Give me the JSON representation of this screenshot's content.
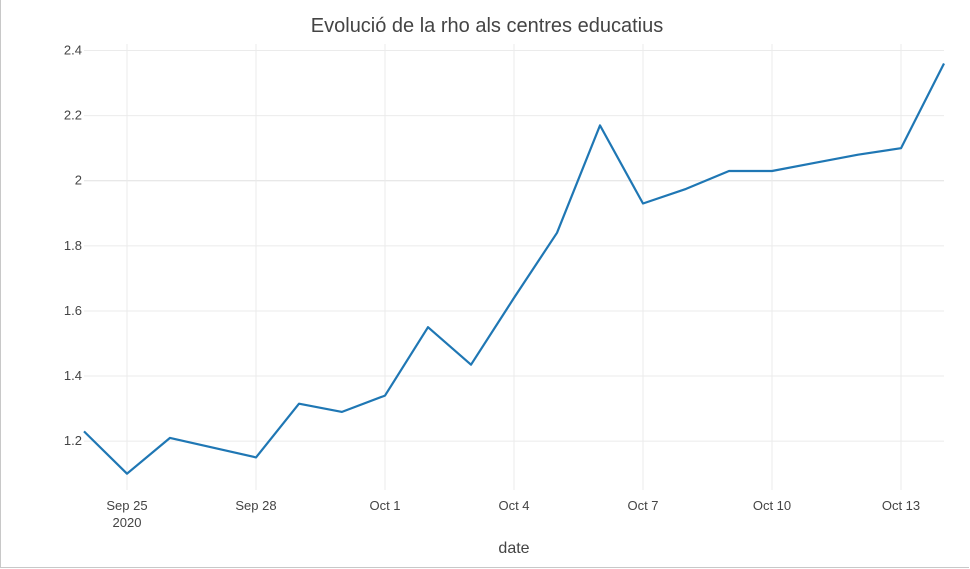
{
  "chart_data": {
    "type": "line",
    "title": "Evolució de la rho als centres educatius",
    "xlabel": "date",
    "ylabel": "",
    "series": [
      {
        "color": "#1f77b4",
        "x": [
          "2020-09-24",
          "2020-09-25",
          "2020-09-26",
          "2020-09-28",
          "2020-09-29",
          "2020-09-30",
          "2020-10-01",
          "2020-10-02",
          "2020-10-03",
          "2020-10-04",
          "2020-10-05",
          "2020-10-06",
          "2020-10-07",
          "2020-10-08",
          "2020-10-09",
          "2020-10-10",
          "2020-10-11",
          "2020-10-12",
          "2020-10-13",
          "2020-10-14"
        ],
        "y": [
          1.23,
          1.1,
          1.21,
          1.15,
          1.315,
          1.29,
          1.34,
          1.55,
          1.435,
          1.64,
          1.84,
          2.17,
          1.93,
          1.975,
          2.03,
          2.03,
          2.055,
          2.08,
          2.1,
          2.36
        ]
      }
    ],
    "xlim": [
      "2020-09-24",
      "2020-10-14"
    ],
    "ylim": [
      1.05,
      2.42
    ],
    "x_ticks": [
      {
        "date": "2020-09-25",
        "label": "Sep 25",
        "sublabel": "2020"
      },
      {
        "date": "2020-09-28",
        "label": "Sep 28"
      },
      {
        "date": "2020-10-01",
        "label": "Oct 1"
      },
      {
        "date": "2020-10-04",
        "label": "Oct 4"
      },
      {
        "date": "2020-10-07",
        "label": "Oct 7"
      },
      {
        "date": "2020-10-10",
        "label": "Oct 10"
      },
      {
        "date": "2020-10-13",
        "label": "Oct 13"
      }
    ],
    "y_ticks": [
      {
        "value": 1.2,
        "label": "1.2"
      },
      {
        "value": 1.4,
        "label": "1.4"
      },
      {
        "value": 1.6,
        "label": "1.6"
      },
      {
        "value": 1.8,
        "label": "1.8"
      },
      {
        "value": 2.0,
        "label": "2"
      },
      {
        "value": 2.2,
        "label": "2.2"
      },
      {
        "value": 2.4,
        "label": "2.4"
      }
    ],
    "grid": true,
    "legend": "none"
  }
}
